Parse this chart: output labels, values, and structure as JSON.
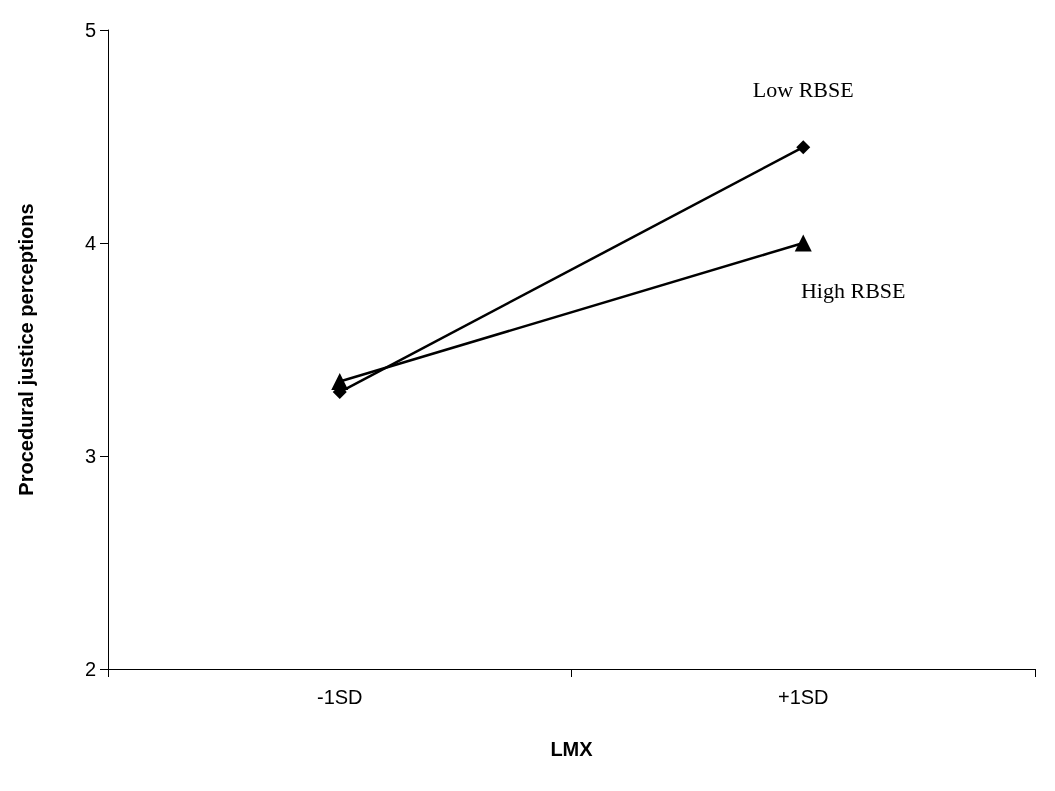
{
  "chart_data": {
    "type": "line",
    "xlabel": "LMX",
    "ylabel": "Procedural justice perceptions",
    "categories": [
      "-1SD",
      "+1SD"
    ],
    "series": [
      {
        "name": "Low RBSE",
        "color": "#000000",
        "marker": "diamond",
        "values": [
          3.3,
          4.45
        ]
      },
      {
        "name": "High RBSE",
        "color": "#000000",
        "marker": "triangle",
        "values": [
          3.35,
          4.0
        ]
      }
    ],
    "ylim": [
      2,
      5
    ],
    "yticks": [
      2,
      3,
      4,
      5
    ],
    "grid": false,
    "legend": false
  }
}
